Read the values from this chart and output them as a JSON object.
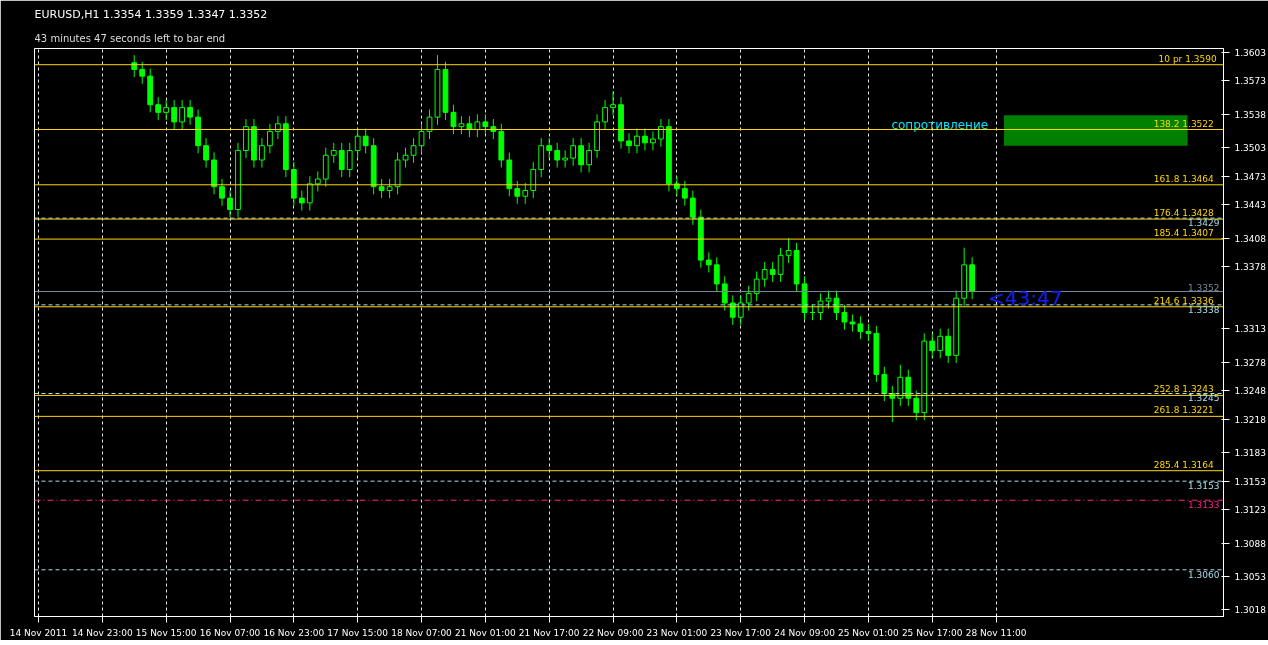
{
  "chart_data": {
    "type": "candlestick",
    "title": "EURUSD,H1  1.3354 1.3359 1.3347 1.3352",
    "subtitle": "43 minutes 47 seconds left to bar end",
    "categories": [
      "14 Nov 2011",
      null,
      null,
      null,
      null,
      null,
      null,
      null,
      "14 Nov 23:00",
      null,
      null,
      null,
      null,
      null,
      null,
      null,
      "15 Nov 15:00",
      null,
      null,
      null,
      null,
      null,
      null,
      null,
      "16 Nov 07:00",
      null,
      null,
      null,
      null,
      null,
      null,
      null,
      "16 Nov 23:00",
      null,
      null,
      null,
      null,
      null,
      null,
      null,
      "17 Nov 15:00",
      null,
      null,
      null,
      null,
      null,
      null,
      null,
      "18 Nov 07:00",
      null,
      null,
      null,
      null,
      null,
      null,
      null,
      "21 Nov 01:00",
      null,
      null,
      null,
      null,
      null,
      null,
      null,
      "21 Nov 17:00",
      null,
      null,
      null,
      null,
      null,
      null,
      null,
      "22 Nov 09:00",
      null,
      null,
      null,
      null,
      null,
      null,
      null,
      "23 Nov 01:00",
      null,
      null,
      null,
      null,
      null,
      null,
      null,
      "23 Nov 17:00",
      null,
      null,
      null,
      null,
      null,
      null,
      null,
      "24 Nov 09:00",
      null,
      null,
      null,
      null,
      null,
      null,
      null,
      "25 Nov 01:00",
      null,
      null,
      null,
      null,
      null,
      null,
      null,
      "25 Nov 17:00",
      null,
      null,
      null,
      null,
      null,
      null,
      null,
      "28 Nov 11:00",
      null,
      null,
      null,
      null,
      null,
      null,
      null,
      null,
      null,
      null,
      null,
      null,
      null,
      null,
      null,
      null,
      null,
      null,
      null,
      null,
      null,
      null,
      null,
      null,
      null,
      null,
      null,
      null
    ],
    "series": [
      {
        "color": "#00ff00",
        "ohlc": [
          null,
          null,
          null,
          null,
          null,
          null,
          null,
          null,
          null,
          null,
          null,
          null,
          [
            1.3592,
            1.36,
            1.3577,
            1.3585
          ],
          [
            1.3585,
            1.3593,
            1.357,
            1.3578
          ],
          [
            1.3578,
            1.3586,
            1.354,
            1.3548
          ],
          [
            1.3548,
            1.3556,
            1.3532,
            1.354
          ],
          [
            1.354,
            1.3553,
            1.3532,
            1.3545
          ],
          [
            1.3545,
            1.3553,
            1.3522,
            1.353
          ],
          [
            1.353,
            1.3553,
            1.3522,
            1.3545
          ],
          [
            1.3545,
            1.3553,
            1.3527,
            1.3535
          ],
          [
            1.3535,
            1.3543,
            1.3497,
            1.3505
          ],
          [
            1.3505,
            1.3513,
            1.3482,
            1.349
          ],
          [
            1.349,
            1.3498,
            1.3454,
            1.3462
          ],
          [
            1.3462,
            1.347,
            1.3442,
            1.345
          ],
          [
            1.345,
            1.3458,
            1.343,
            1.3438
          ],
          [
            1.3438,
            1.3508,
            1.343,
            1.35
          ],
          [
            1.35,
            1.3533,
            1.3492,
            1.3525
          ],
          [
            1.3525,
            1.3533,
            1.3482,
            1.349
          ],
          [
            1.349,
            1.3513,
            1.3482,
            1.3505
          ],
          [
            1.3505,
            1.3528,
            1.3497,
            1.352
          ],
          [
            1.352,
            1.3536,
            1.3512,
            1.3528
          ],
          [
            1.3528,
            1.3536,
            1.3472,
            1.348
          ],
          [
            1.348,
            1.3488,
            1.3442,
            1.345
          ],
          [
            1.345,
            1.3458,
            1.3437,
            1.3445
          ],
          [
            1.3445,
            1.3473,
            1.3437,
            1.3465
          ],
          [
            1.3465,
            1.3478,
            1.3457,
            1.347
          ],
          [
            1.347,
            1.3503,
            1.3462,
            1.3495
          ],
          [
            1.3495,
            1.3508,
            1.3487,
            1.35
          ],
          [
            1.35,
            1.3508,
            1.3472,
            1.348
          ],
          [
            1.348,
            1.3508,
            1.3472,
            1.35
          ],
          [
            1.35,
            1.3523,
            1.3492,
            1.3515
          ],
          [
            1.3515,
            1.3523,
            1.3497,
            1.3505
          ],
          [
            1.3505,
            1.3513,
            1.3454,
            1.3462
          ],
          [
            1.3462,
            1.347,
            1.345,
            1.3458
          ],
          [
            1.3458,
            1.347,
            1.345,
            1.3462
          ],
          [
            1.3462,
            1.3498,
            1.3454,
            1.349
          ],
          [
            1.349,
            1.3503,
            1.3482,
            1.3495
          ],
          [
            1.3495,
            1.3513,
            1.3487,
            1.3505
          ],
          [
            1.3505,
            1.3528,
            1.3497,
            1.352
          ],
          [
            1.352,
            1.3543,
            1.3512,
            1.3535
          ],
          [
            1.3535,
            1.36,
            1.3527,
            1.3585
          ],
          [
            1.3585,
            1.3593,
            1.3532,
            1.354
          ],
          [
            1.354,
            1.3548,
            1.3517,
            1.3525
          ],
          [
            1.3525,
            1.3536,
            1.3517,
            1.3528
          ],
          [
            1.3528,
            1.3536,
            1.3514,
            1.3522
          ],
          [
            1.3522,
            1.3538,
            1.3514,
            1.353
          ],
          [
            1.353,
            1.3538,
            1.3517,
            1.3525
          ],
          [
            1.3525,
            1.3533,
            1.3512,
            1.352
          ],
          [
            1.352,
            1.3528,
            1.3482,
            1.349
          ],
          [
            1.349,
            1.3498,
            1.3452,
            1.346
          ],
          [
            1.346,
            1.3468,
            1.3444,
            1.3452
          ],
          [
            1.3452,
            1.3466,
            1.3444,
            1.3458
          ],
          [
            1.3458,
            1.3488,
            1.345,
            1.348
          ],
          [
            1.348,
            1.3513,
            1.3472,
            1.3505
          ],
          [
            1.3505,
            1.3513,
            1.3492,
            1.35
          ],
          [
            1.35,
            1.3508,
            1.3482,
            1.349
          ],
          [
            1.349,
            1.35,
            1.3482,
            1.3492
          ],
          [
            1.3492,
            1.3513,
            1.3484,
            1.3505
          ],
          [
            1.3505,
            1.3513,
            1.3477,
            1.3485
          ],
          [
            1.3485,
            1.3508,
            1.3477,
            1.35
          ],
          [
            1.35,
            1.3538,
            1.3492,
            1.353
          ],
          [
            1.353,
            1.3553,
            1.3522,
            1.3545
          ],
          [
            1.3545,
            1.3562,
            1.3537,
            1.3548
          ],
          [
            1.3548,
            1.3556,
            1.3502,
            1.351
          ],
          [
            1.351,
            1.3518,
            1.3497,
            1.3505
          ],
          [
            1.3505,
            1.3523,
            1.3497,
            1.3515
          ],
          [
            1.3515,
            1.3523,
            1.35,
            1.3508
          ],
          [
            1.3508,
            1.352,
            1.35,
            1.3512
          ],
          [
            1.3512,
            1.3533,
            1.3504,
            1.3525
          ],
          [
            1.3525,
            1.3533,
            1.3457,
            1.3465
          ],
          [
            1.3465,
            1.3473,
            1.3452,
            1.346
          ],
          [
            1.346,
            1.3468,
            1.3442,
            1.345
          ],
          [
            1.345,
            1.3458,
            1.3422,
            1.343
          ],
          [
            1.343,
            1.3438,
            1.3377,
            1.3385
          ],
          [
            1.3385,
            1.3393,
            1.3372,
            1.338
          ],
          [
            1.338,
            1.3388,
            1.3352,
            1.336
          ],
          [
            1.336,
            1.3368,
            1.3332,
            1.334
          ],
          [
            1.334,
            1.3348,
            1.3317,
            1.3325
          ],
          [
            1.3325,
            1.3348,
            1.3317,
            1.334
          ],
          [
            1.334,
            1.3358,
            1.3332,
            1.335
          ],
          [
            1.335,
            1.3373,
            1.3342,
            1.3365
          ],
          [
            1.3365,
            1.3383,
            1.3357,
            1.3375
          ],
          [
            1.3375,
            1.3383,
            1.3362,
            1.337
          ],
          [
            1.337,
            1.3398,
            1.3362,
            1.339
          ],
          [
            1.339,
            1.3408,
            1.3382,
            1.3395
          ],
          [
            1.3395,
            1.3403,
            1.3352,
            1.336
          ],
          [
            1.336,
            1.3368,
            1.3322,
            1.333
          ],
          [
            1.333,
            1.3338,
            1.3322,
            1.333
          ],
          [
            1.333,
            1.335,
            1.3322,
            1.3342
          ],
          [
            1.3342,
            1.3353,
            1.3334,
            1.3345
          ],
          [
            1.3345,
            1.3353,
            1.3322,
            1.333
          ],
          [
            1.333,
            1.3338,
            1.3312,
            1.332
          ],
          [
            1.332,
            1.3328,
            1.331,
            1.3318
          ],
          [
            1.3318,
            1.3326,
            1.3302,
            1.331
          ],
          [
            1.331,
            1.3318,
            1.33,
            1.3308
          ],
          [
            1.3308,
            1.3316,
            1.3257,
            1.3265
          ],
          [
            1.3265,
            1.3273,
            1.3237,
            1.3245
          ],
          [
            1.3245,
            1.3253,
            1.3215,
            1.324
          ],
          [
            1.324,
            1.3275,
            1.3232,
            1.3262
          ],
          [
            1.3262,
            1.327,
            1.3232,
            1.324
          ],
          [
            1.324,
            1.3248,
            1.3217,
            1.3225
          ],
          [
            1.3225,
            1.3308,
            1.3217,
            1.33
          ],
          [
            1.33,
            1.3308,
            1.3282,
            1.329
          ],
          [
            1.329,
            1.3313,
            1.3282,
            1.3305
          ],
          [
            1.3305,
            1.3313,
            1.3277,
            1.3285
          ],
          [
            1.3285,
            1.3353,
            1.3277,
            1.3345
          ],
          [
            1.3345,
            1.3398,
            1.3337,
            1.338
          ],
          [
            1.338,
            1.3388,
            1.3344,
            1.3352
          ],
          null,
          null,
          null,
          null,
          null,
          null,
          null,
          null,
          null,
          null,
          null,
          null,
          null,
          null,
          null,
          null,
          null,
          null,
          null,
          null,
          null,
          null,
          null,
          null,
          null,
          null,
          null,
          null,
          null,
          null,
          null
        ]
      }
    ],
    "ylim": [
      1.3011,
      1.3607
    ],
    "yticks": [
      1.3603,
      1.3573,
      1.3538,
      1.3503,
      1.3473,
      1.3443,
      1.3408,
      1.3378,
      1.3313,
      1.3278,
      1.3248,
      1.3218,
      1.3183,
      1.3153,
      1.3123,
      1.3088,
      1.3053,
      1.3018
    ],
    "grid": "x",
    "ref_lines": [
      {
        "axis": "y",
        "value": 1.359,
        "label": "10 pr  1.3590",
        "color": "#ffd700",
        "line_style": "solid"
      },
      {
        "axis": "y",
        "value": 1.3522,
        "label": "138.2   1.3522",
        "color": "#ffd700",
        "line_style": "solid"
      },
      {
        "axis": "y",
        "value": 1.3464,
        "label": "161.8   1.3464",
        "color": "#ffd700",
        "line_style": "solid"
      },
      {
        "axis": "y",
        "value": 1.3428,
        "label": "176.4   1.3428",
        "color": "#ffd700",
        "line_style": "solid"
      },
      {
        "axis": "y",
        "value": 1.3407,
        "label": "185.4   1.3407",
        "color": "#ffd700",
        "line_style": "solid"
      },
      {
        "axis": "y",
        "value": 1.3336,
        "label": "214.6   1.3336",
        "color": "#ffd700",
        "line_style": "solid"
      },
      {
        "axis": "y",
        "value": 1.3243,
        "label": "252.8   1.3243",
        "color": "#ffd700",
        "line_style": "solid"
      },
      {
        "axis": "y",
        "value": 1.3221,
        "label": "261.8   1.3221",
        "color": "#ffd700",
        "line_style": "solid"
      },
      {
        "axis": "y",
        "value": 1.3164,
        "label": "285.4   1.3164",
        "color": "#ffd700",
        "line_style": "solid"
      },
      {
        "axis": "y",
        "value": 1.3429,
        "label": "1.3429",
        "color": "#aaddee",
        "line_style": "dashed"
      },
      {
        "axis": "y",
        "value": 1.3338,
        "label": "1.3338",
        "color": "#aaddee",
        "line_style": "dashed"
      },
      {
        "axis": "y",
        "value": 1.3245,
        "label": "1.3245",
        "color": "#aaddee",
        "line_style": "dashed"
      },
      {
        "axis": "y",
        "value": 1.3153,
        "label": "1.3153",
        "color": "#aaddee",
        "line_style": "dashed"
      },
      {
        "axis": "y",
        "value": 1.306,
        "label": "1.3060",
        "color": "#aaddee",
        "line_style": "dashed"
      },
      {
        "axis": "y",
        "value": 1.3352,
        "label": "1.3352",
        "color": "#778899",
        "line_style": "solid"
      },
      {
        "axis": "y",
        "value": 1.3133,
        "label": "1.3133",
        "color": "#ff2288",
        "line_style": "dashdot"
      }
    ],
    "bands": [
      {
        "axis": "y",
        "from": 1.3505,
        "to": 1.3537,
        "label": "сопротивление",
        "color": "#008000"
      }
    ],
    "annotations": [
      "<43:47"
    ]
  }
}
